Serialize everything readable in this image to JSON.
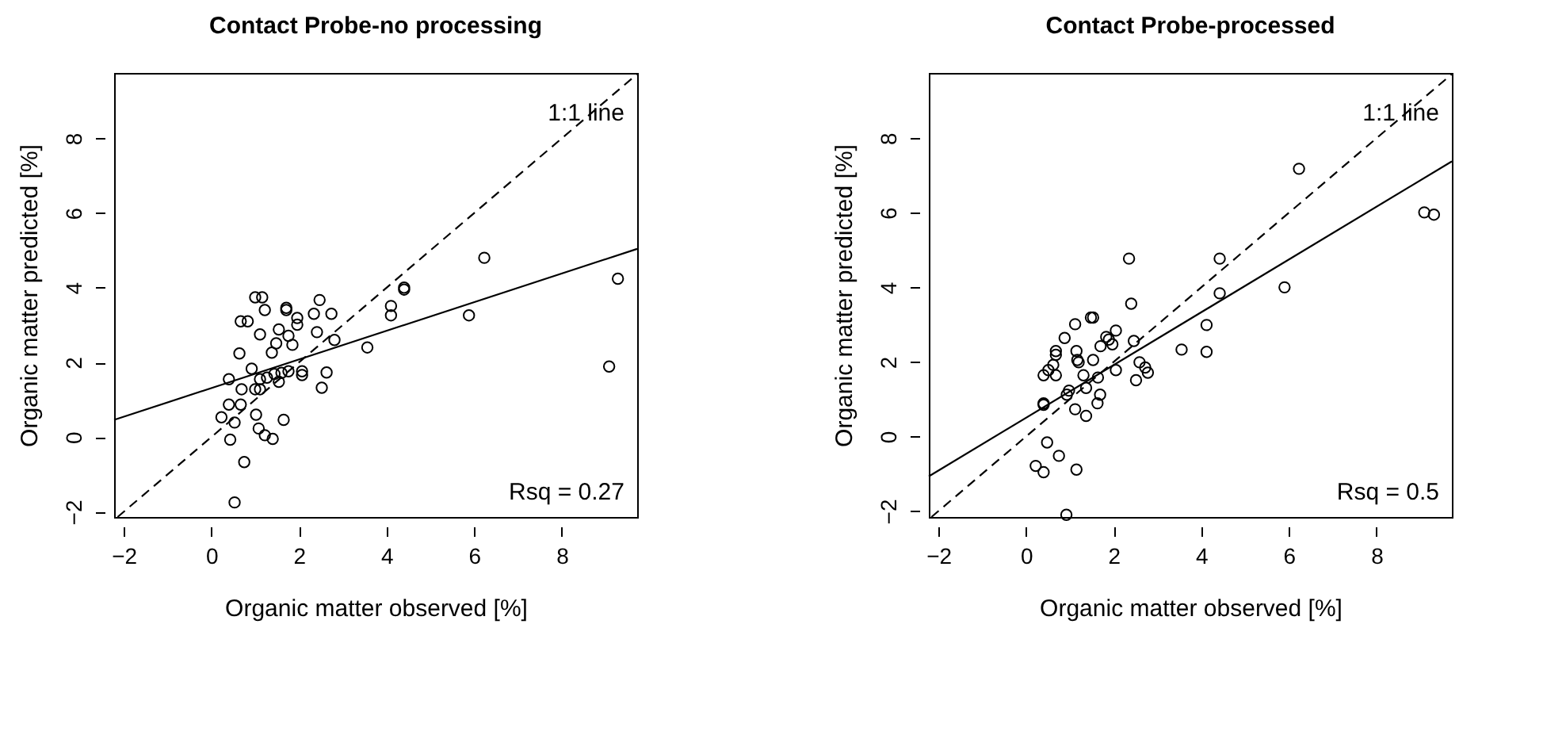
{
  "chart_data": [
    {
      "type": "scatter",
      "title": "Contact Probe-no processing",
      "xlabel": "Organic matter observed [%]",
      "ylabel": "Organic matter predicted [%]",
      "xlim": [
        -2.22,
        9.72
      ],
      "ylim": [
        -2.14,
        9.75
      ],
      "xticks": [
        -2,
        0,
        2,
        4,
        6,
        8
      ],
      "yticks": [
        -2,
        0,
        2,
        4,
        6,
        8
      ],
      "grid": false,
      "annotations": [
        "1:1 line",
        "Rsq  =  0.27"
      ],
      "series": [
        {
          "marker": "circle",
          "color": "#000000",
          "x": [
            6.23,
            9.28,
            9.08,
            5.88,
            4.4,
            4.4,
            4.1,
            4.1,
            3.56,
            2.81,
            2.74,
            2.47,
            2.34,
            2.41,
            2.63,
            2.52,
            2.07,
            2.07,
            1.96,
            1.96,
            1.71,
            1.71,
            1.85,
            1.76,
            1.54,
            1.48,
            1.38,
            1.22,
            1.11,
            1.0,
            1.16,
            0.67,
            0.83,
            0.64,
            0.4,
            0.92,
            1.11,
            1.27,
            1.44,
            1.6,
            1.76,
            1.54,
            0.69,
            1.0,
            1.11,
            0.4,
            0.67,
            0.23,
            0.53,
            1.02,
            1.08,
            1.22,
            1.4,
            1.65,
            0.43,
            0.75,
            0.53
          ],
          "values": [
            4.8,
            4.24,
            1.89,
            3.26,
            4.0,
            3.95,
            3.51,
            3.26,
            2.4,
            2.6,
            3.3,
            3.67,
            3.3,
            2.81,
            1.73,
            1.32,
            1.76,
            1.66,
            3.19,
            3.01,
            3.46,
            3.4,
            2.47,
            2.71,
            2.88,
            2.51,
            2.26,
            3.4,
            2.75,
            3.74,
            3.74,
            3.1,
            3.1,
            2.24,
            1.55,
            1.83,
            1.55,
            1.59,
            1.69,
            1.72,
            1.76,
            1.48,
            1.28,
            1.28,
            1.28,
            0.87,
            0.87,
            0.53,
            0.39,
            0.6,
            0.23,
            0.05,
            -0.05,
            0.46,
            -0.07,
            -0.67,
            -1.75
          ]
        },
        {
          "type": "line",
          "line_style": "dashed",
          "color": "#000000",
          "x": [
            -2.14,
            9.72
          ],
          "values": [
            -2.14,
            9.72
          ]
        },
        {
          "type": "line",
          "line_style": "solid",
          "color": "#000000",
          "x": [
            -2.22,
            9.72
          ],
          "values": [
            0.46,
            5.04
          ]
        }
      ]
    },
    {
      "type": "scatter",
      "title": "Contact Probe-processed",
      "xlabel": "Organic matter observed [%]",
      "ylabel": "Organic matter predicted [%]",
      "xlim": [
        -2.22,
        9.72
      ],
      "ylim": [
        -2.16,
        9.75
      ],
      "xticks": [
        -2,
        0,
        2,
        4,
        6,
        8
      ],
      "yticks": [
        -2,
        0,
        2,
        4,
        6,
        8
      ],
      "grid": false,
      "annotations": [
        "1:1 line",
        "Rsq  =  0.5"
      ],
      "series": [
        {
          "marker": "circle",
          "color": "#000000",
          "x": [
            6.23,
            9.09,
            9.31,
            5.9,
            4.42,
            4.42,
            4.12,
            4.12,
            3.55,
            2.35,
            2.4,
            2.46,
            2.05,
            1.97,
            1.83,
            1.89,
            1.7,
            1.53,
            1.48,
            1.53,
            1.12,
            0.88,
            1.15,
            1.17,
            0.68,
            0.68,
            0.62,
            0.51,
            0.4,
            0.68,
            1.2,
            1.31,
            1.64,
            2.05,
            2.59,
            2.72,
            2.78,
            2.51,
            1.37,
            0.98,
            0.93,
            1.69,
            1.63,
            1.12,
            1.37,
            0.4,
            0.4,
            0.48,
            0.75,
            0.22,
            0.4,
            1.15,
            0.92
          ],
          "values": [
            7.18,
            6.01,
            5.95,
            4.0,
            4.77,
            3.84,
            2.99,
            2.27,
            2.33,
            4.77,
            3.56,
            2.56,
            2.84,
            2.47,
            2.67,
            2.6,
            2.42,
            2.05,
            3.19,
            3.19,
            3.01,
            2.64,
            2.29,
            2.05,
            2.29,
            2.19,
            1.92,
            1.78,
            1.64,
            1.64,
            1.99,
            1.64,
            1.58,
            1.78,
            1.99,
            1.85,
            1.71,
            1.51,
            1.3,
            1.23,
            1.12,
            1.12,
            0.89,
            0.73,
            0.55,
            0.89,
            0.85,
            -0.16,
            -0.52,
            -0.79,
            -0.96,
            -0.89,
            -2.1
          ]
        },
        {
          "type": "line",
          "line_style": "dashed",
          "color": "#000000",
          "x": [
            -2.16,
            9.72
          ],
          "values": [
            -2.16,
            9.72
          ]
        },
        {
          "type": "line",
          "line_style": "solid",
          "color": "#000000",
          "x": [
            -2.22,
            9.72
          ],
          "values": [
            -1.07,
            7.38
          ]
        }
      ]
    }
  ]
}
